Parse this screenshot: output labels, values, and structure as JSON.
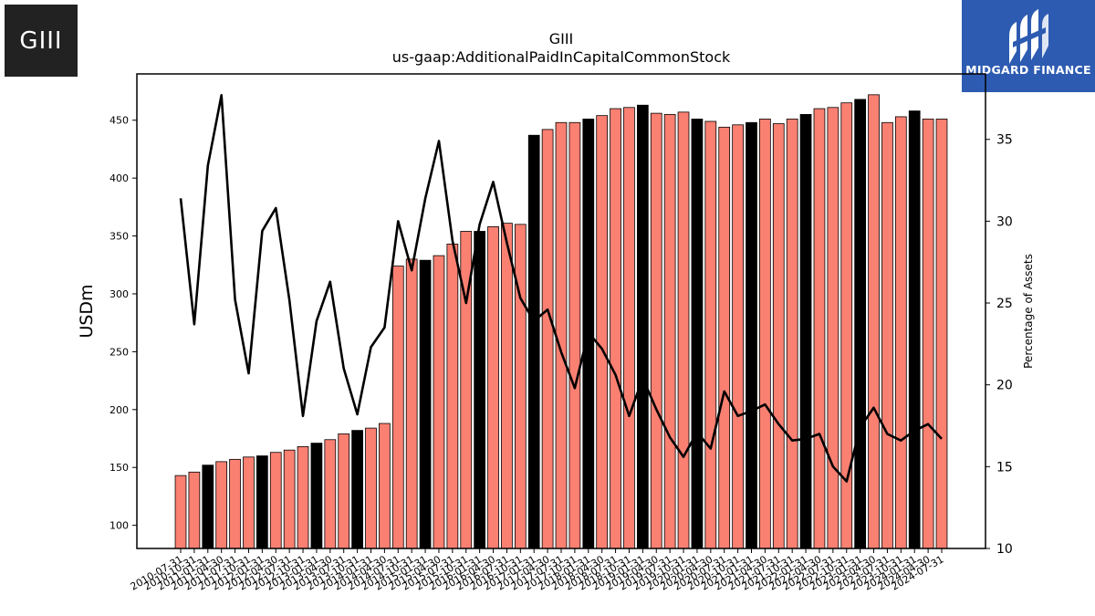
{
  "logos": {
    "left_text": "GIII",
    "right_text": "MIDGARD FINANCE"
  },
  "chart_data": {
    "type": "bar",
    "title": "GIII",
    "subtitle": "us-gaap:AdditionalPaidInCapitalCommonStock",
    "ylabel": "USDm",
    "y2label": "Percentage of Assets",
    "ylim": [
      80,
      490
    ],
    "y2lim": [
      10,
      39
    ],
    "yticks": [
      100,
      150,
      200,
      250,
      300,
      350,
      400,
      450
    ],
    "y2ticks": [
      10,
      15,
      20,
      25,
      30,
      35
    ],
    "colors": {
      "bar": "#fa8072",
      "bar_highlight": "#000000",
      "line": "#000000"
    },
    "categories": [
      "2010-07-31",
      "2010-10-31",
      "2011-01-31",
      "2011-04-30",
      "2011-07-31",
      "2011-10-31",
      "2012-01-31",
      "2012-04-30",
      "2012-07-31",
      "2012-10-31",
      "2013-01-31",
      "2013-04-30",
      "2013-07-31",
      "2013-10-31",
      "2014-01-31",
      "2014-04-30",
      "2014-07-31",
      "2014-10-31",
      "2015-01-31",
      "2015-04-30",
      "2015-07-31",
      "2015-10-31",
      "2016-01-31",
      "2016-04-30",
      "2016-07-31",
      "2016-10-31",
      "2017-01-31",
      "2017-04-30",
      "2017-07-31",
      "2017-10-31",
      "2018-01-31",
      "2018-04-30",
      "2018-07-31",
      "2018-10-31",
      "2019-01-31",
      "2019-04-30",
      "2019-07-31",
      "2019-10-31",
      "2020-01-31",
      "2020-04-30",
      "2020-07-31",
      "2020-10-31",
      "2021-01-31",
      "2021-04-30",
      "2021-07-31",
      "2021-10-31",
      "2022-01-31",
      "2022-04-30",
      "2022-07-31",
      "2022-10-31",
      "2023-01-31",
      "2023-04-30",
      "2023-07-31",
      "2023-10-31",
      "2024-01-31",
      "2024-04-30",
      "2024-07-31"
    ],
    "xticklabels": [
      "2010-07-31",
      "2010-10-31",
      "2011-01-31",
      "2011-04-30",
      "2011-07-31",
      "2011-10-31",
      "2012-01-31",
      "2012-04-30",
      "2012-07-31",
      "2012-10-31",
      "2013-01-31",
      "2013-04-30",
      "2013-07-31",
      "2013-10-31",
      "2014-01-31",
      "2014-04-30",
      "2014-07-31",
      "2014-10-31",
      "2015-01-31",
      "2015-04-30",
      "2015-07-31",
      "2015-10-31",
      "2016-01-31",
      "2016-04-30",
      "2016-07-31",
      "2016-10-31",
      "2017-01-31",
      "2017-04-30",
      "2017-07-31",
      "2017-10-31",
      "2018-01-31",
      "2018-04-30",
      "2018-07-31",
      "2018-10-31",
      "2019-01-31",
      "2019-04-30",
      "2019-07-31",
      "2019-10-31",
      "2020-01-31",
      "2020-04-30",
      "2020-07-31",
      "2020-10-31",
      "2021-01-31",
      "2021-04-30",
      "2021-07-31",
      "2021-10-31",
      "2022-01-31",
      "2022-04-30",
      "2022-07-31",
      "2022-10-31",
      "2023-01-31",
      "2023-04-30",
      "2023-07-31",
      "2023-10-31",
      "2024-01-31",
      "2024-04-30",
      "2024-07-31"
    ],
    "series": [
      {
        "axis": "left",
        "kind": "bar",
        "values": [
          143,
          146,
          152,
          155,
          157,
          159,
          160,
          163,
          165,
          168,
          171,
          174,
          179,
          182,
          184,
          188,
          324,
          330,
          329,
          333,
          343,
          354,
          354,
          358,
          361,
          360,
          437,
          442,
          448,
          448,
          451,
          454,
          460,
          461,
          463,
          456,
          455,
          457,
          451,
          449,
          444,
          446,
          448,
          451,
          447,
          451,
          455,
          460,
          461,
          465,
          468,
          472,
          448,
          453,
          458,
          451,
          451
        ],
        "highlight": [
          false,
          false,
          true,
          false,
          false,
          false,
          true,
          false,
          false,
          false,
          true,
          false,
          false,
          true,
          false,
          false,
          false,
          false,
          true,
          false,
          false,
          false,
          true,
          false,
          false,
          false,
          true,
          false,
          false,
          false,
          true,
          false,
          false,
          false,
          true,
          false,
          false,
          false,
          true,
          false,
          false,
          false,
          true,
          false,
          false,
          false,
          true,
          false,
          false,
          false,
          true,
          false,
          false,
          false,
          true,
          false,
          false
        ]
      },
      {
        "axis": "right",
        "kind": "line",
        "values": [
          31.4,
          23.7,
          33.4,
          37.7,
          25.2,
          20.7,
          29.4,
          30.8,
          25.2,
          18.1,
          23.9,
          26.3,
          21.0,
          18.2,
          22.3,
          23.5,
          30.0,
          27.0,
          31.4,
          34.9,
          28.8,
          25.0,
          29.8,
          32.4,
          28.7,
          25.3,
          23.9,
          24.6,
          22.0,
          19.8,
          23.2,
          22.2,
          20.6,
          18.1,
          20.4,
          18.5,
          16.8,
          15.6,
          17.1,
          16.1,
          19.6,
          18.1,
          18.4,
          18.8,
          17.6,
          16.6,
          16.7,
          17.0,
          15.0,
          14.1,
          17.4,
          18.6,
          17.0,
          16.6,
          17.2,
          17.6,
          16.7
        ]
      }
    ]
  }
}
